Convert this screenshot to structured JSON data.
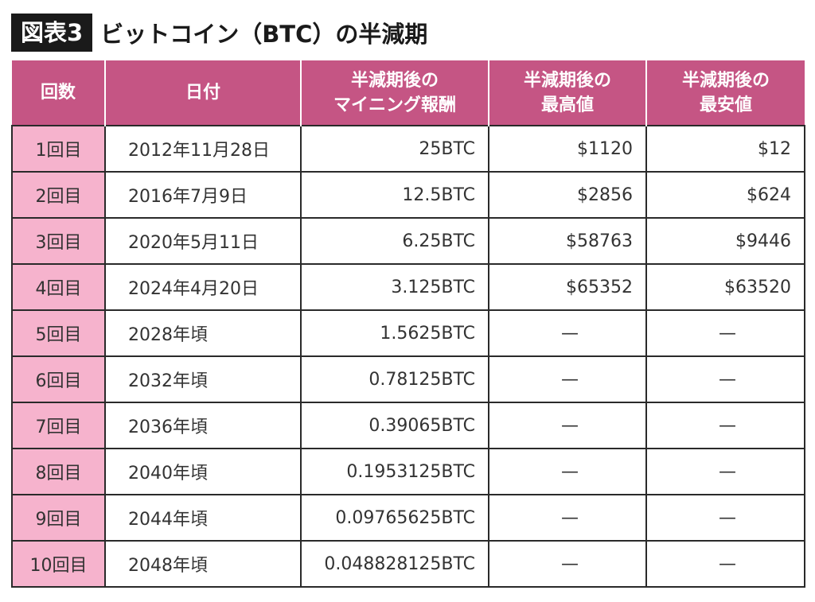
{
  "figure": {
    "badge": "図表3",
    "title": "ビットコイン（BTC）の半減期"
  },
  "table": {
    "headers": [
      [
        "回数"
      ],
      [
        "日付"
      ],
      [
        "半減期後の",
        "マイニング報酬"
      ],
      [
        "半減期後の",
        "最高値"
      ],
      [
        "半減期後の",
        "最安値"
      ]
    ],
    "rows": [
      {
        "count": "1回目",
        "date": "2012年11月28日",
        "reward": "25BTC",
        "high": "$1120",
        "low": "$12"
      },
      {
        "count": "2回目",
        "date": "2016年7月9日",
        "reward": "12.5BTC",
        "high": "$2856",
        "low": "$624"
      },
      {
        "count": "3回目",
        "date": "2020年5月11日",
        "reward": "6.25BTC",
        "high": "$58763",
        "low": "$9446"
      },
      {
        "count": "4回目",
        "date": "2024年4月20日",
        "reward": "3.125BTC",
        "high": "$65352",
        "low": "$63520"
      },
      {
        "count": "5回目",
        "date": "2028年頃",
        "reward": "1.5625BTC",
        "high": "—",
        "low": "—"
      },
      {
        "count": "6回目",
        "date": "2032年頃",
        "reward": "0.78125BTC",
        "high": "—",
        "low": "—"
      },
      {
        "count": "7回目",
        "date": "2036年頃",
        "reward": "0.39065BTC",
        "high": "—",
        "low": "—"
      },
      {
        "count": "8回目",
        "date": "2040年頃",
        "reward": "0.1953125BTC",
        "high": "—",
        "low": "—"
      },
      {
        "count": "9回目",
        "date": "2044年頃",
        "reward": "0.09765625BTC",
        "high": "—",
        "low": "—"
      },
      {
        "count": "10回目",
        "date": "2048年頃",
        "reward": "0.048828125BTC",
        "high": "—",
        "low": "—"
      }
    ]
  },
  "colors": {
    "header_bg": "#c55584",
    "count_bg": "#f6b3cd",
    "badge_bg": "#1a1a1a"
  }
}
